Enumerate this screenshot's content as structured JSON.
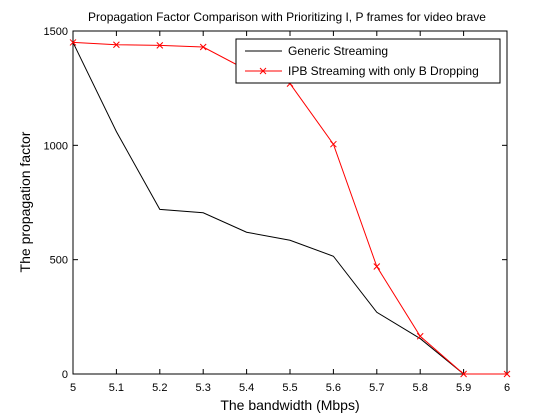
{
  "chart_data": {
    "type": "line",
    "title": "Propagation Factor Comparison with Prioritizing I, P frames for video brave",
    "xlabel": "The bandwidth (Mbps)",
    "ylabel": "The propagation factor",
    "xlim": [
      5,
      6
    ],
    "ylim": [
      0,
      1500
    ],
    "xticks": [
      5,
      5.1,
      5.2,
      5.3,
      5.4,
      5.5,
      5.6,
      5.7,
      5.8,
      5.9,
      6
    ],
    "xtick_labels": [
      "5",
      "5.1",
      "5.2",
      "5.3",
      "5.4",
      "5.5",
      "5.6",
      "5.7",
      "5.8",
      "5.9",
      "6"
    ],
    "yticks": [
      0,
      500,
      1000,
      1500
    ],
    "ytick_labels": [
      "0",
      "500",
      "1000",
      "1500"
    ],
    "grid": false,
    "legend_position": "top-right",
    "x": [
      5,
      5.1,
      5.2,
      5.3,
      5.4,
      5.5,
      5.6,
      5.7,
      5.8,
      5.9,
      6
    ],
    "series": [
      {
        "name": "Generic Streaming",
        "color": "#000000",
        "marker": "none",
        "values": [
          1450,
          1060,
          720,
          705,
          620,
          585,
          515,
          270,
          155,
          0,
          0
        ]
      },
      {
        "name": "IPB Streaming with only B Dropping",
        "color": "#ff0000",
        "marker": "x",
        "values": [
          1450,
          1440,
          1437,
          1430,
          1330,
          1270,
          1005,
          470,
          165,
          0,
          0
        ]
      }
    ]
  }
}
